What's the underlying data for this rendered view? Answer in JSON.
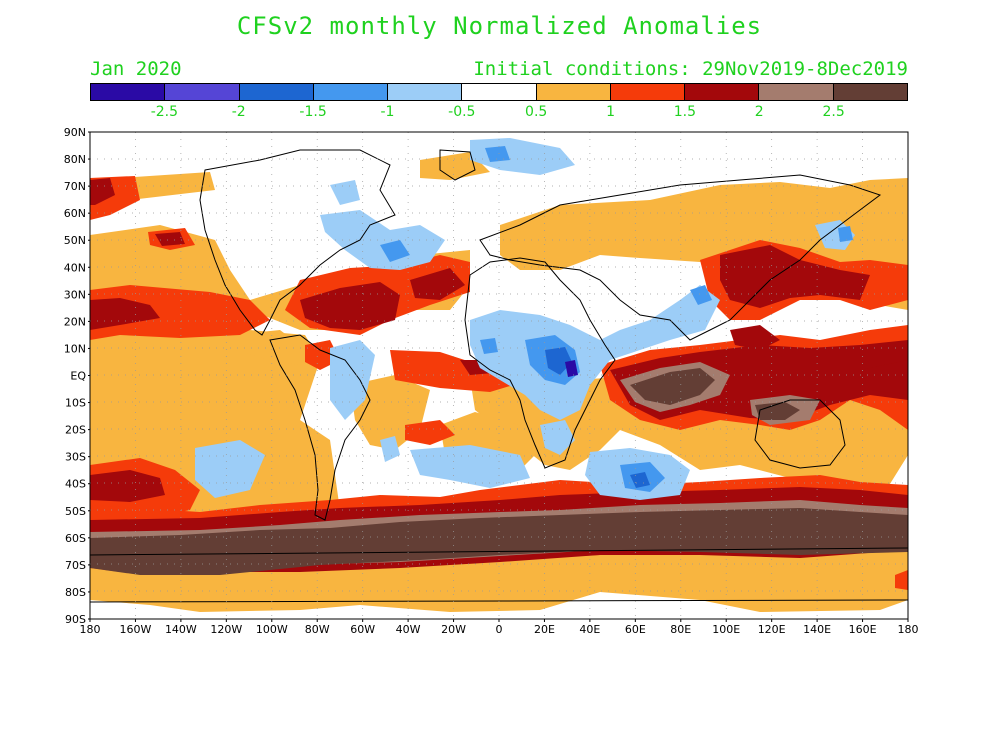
{
  "title": "CFSv2 monthly Normalized Anomalies",
  "period": "Jan 2020",
  "initial_conditions": "Initial conditions: 29Nov2019-8Dec2019",
  "colorbar": {
    "colors": [
      "#2a0aa5",
      "#5545d6",
      "#1d66d1",
      "#4498ef",
      "#9ccdf7",
      "#ffffff",
      "#f8b540",
      "#f53b0a",
      "#a3080b",
      "#a47c6e",
      "#633e35"
    ],
    "labels": [
      "-2.5",
      "-2",
      "-1.5",
      "-1",
      "-0.5",
      "0.5",
      "1",
      "1.5",
      "2",
      "2.5"
    ]
  },
  "lat_labels": [
    "90N",
    "80N",
    "70N",
    "60N",
    "50N",
    "40N",
    "30N",
    "20N",
    "10N",
    "EQ",
    "10S",
    "20S",
    "30S",
    "40S",
    "50S",
    "60S",
    "70S",
    "80S",
    "90S"
  ],
  "lon_labels": [
    "180",
    "160W",
    "140W",
    "120W",
    "100W",
    "80W",
    "60W",
    "40W",
    "20W",
    "0",
    "20E",
    "40E",
    "60E",
    "80E",
    "100E",
    "120E",
    "140E",
    "160E",
    "180"
  ]
}
